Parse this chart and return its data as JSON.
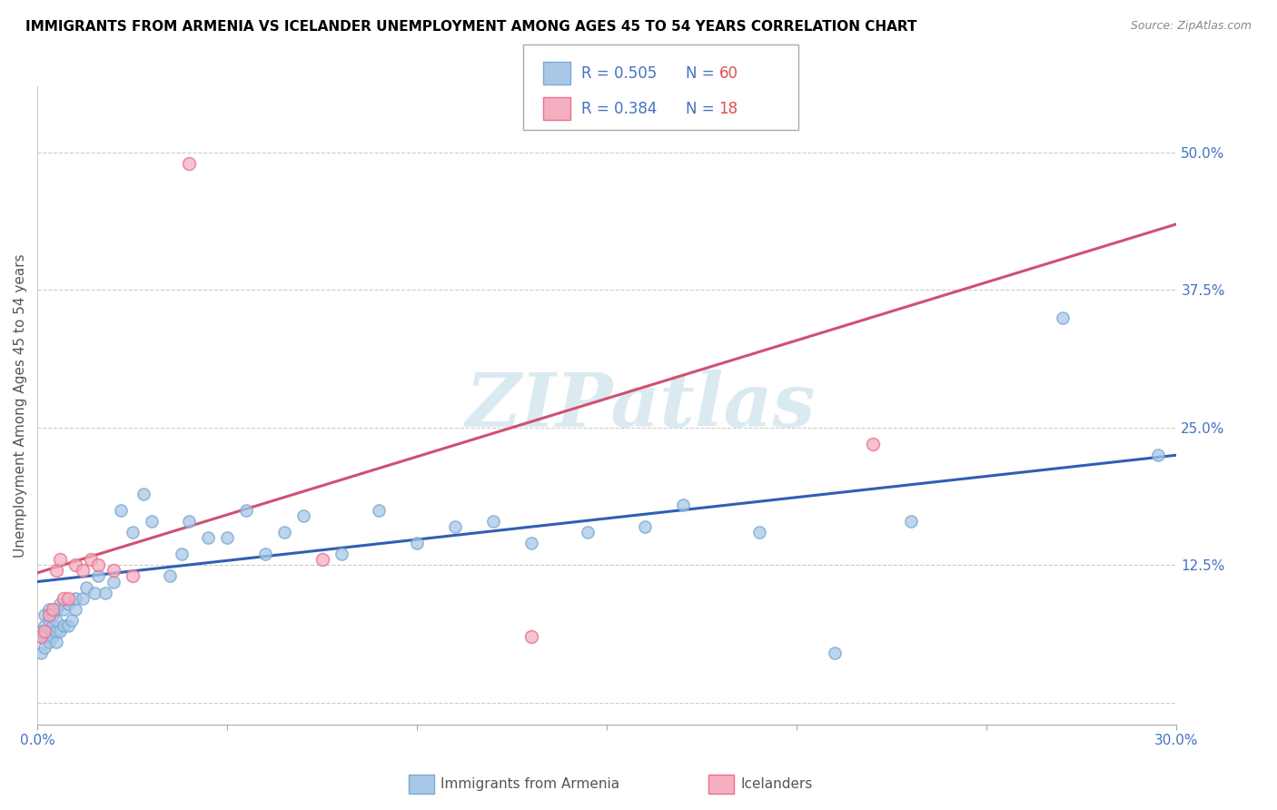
{
  "title": "IMMIGRANTS FROM ARMENIA VS ICELANDER UNEMPLOYMENT AMONG AGES 45 TO 54 YEARS CORRELATION CHART",
  "source": "Source: ZipAtlas.com",
  "ylabel": "Unemployment Among Ages 45 to 54 years",
  "xlim": [
    0.0,
    0.3
  ],
  "ylim": [
    -0.02,
    0.56
  ],
  "xticks": [
    0.0,
    0.05,
    0.1,
    0.15,
    0.2,
    0.25,
    0.3
  ],
  "xticklabels": [
    "0.0%",
    "",
    "",
    "",
    "",
    "",
    "30.0%"
  ],
  "yticks": [
    0.0,
    0.125,
    0.25,
    0.375,
    0.5
  ],
  "yticklabels": [
    "",
    "12.5%",
    "25.0%",
    "37.5%",
    "50.0%"
  ],
  "blue_color": "#a8c8e8",
  "pink_color": "#f4afc0",
  "blue_edge_color": "#7aaad0",
  "pink_edge_color": "#e87090",
  "blue_line_color": "#3060b0",
  "pink_line_color": "#d05070",
  "watermark": "ZIPatlas",
  "blue_scatter_x": [
    0.001,
    0.001,
    0.001,
    0.002,
    0.002,
    0.002,
    0.002,
    0.003,
    0.003,
    0.003,
    0.003,
    0.004,
    0.004,
    0.004,
    0.005,
    0.005,
    0.005,
    0.005,
    0.006,
    0.006,
    0.007,
    0.007,
    0.008,
    0.008,
    0.009,
    0.01,
    0.01,
    0.012,
    0.013,
    0.015,
    0.016,
    0.018,
    0.02,
    0.022,
    0.025,
    0.028,
    0.03,
    0.035,
    0.038,
    0.04,
    0.045,
    0.05,
    0.055,
    0.06,
    0.065,
    0.07,
    0.08,
    0.09,
    0.1,
    0.11,
    0.12,
    0.13,
    0.145,
    0.16,
    0.17,
    0.19,
    0.21,
    0.23,
    0.27,
    0.295
  ],
  "blue_scatter_y": [
    0.045,
    0.06,
    0.065,
    0.05,
    0.06,
    0.07,
    0.08,
    0.055,
    0.065,
    0.075,
    0.085,
    0.06,
    0.07,
    0.08,
    0.055,
    0.065,
    0.075,
    0.085,
    0.065,
    0.09,
    0.07,
    0.085,
    0.07,
    0.09,
    0.075,
    0.085,
    0.095,
    0.095,
    0.105,
    0.1,
    0.115,
    0.1,
    0.11,
    0.175,
    0.155,
    0.19,
    0.165,
    0.115,
    0.135,
    0.165,
    0.15,
    0.15,
    0.175,
    0.135,
    0.155,
    0.17,
    0.135,
    0.175,
    0.145,
    0.16,
    0.165,
    0.145,
    0.155,
    0.16,
    0.18,
    0.155,
    0.045,
    0.165,
    0.35,
    0.225
  ],
  "pink_scatter_x": [
    0.001,
    0.002,
    0.003,
    0.004,
    0.005,
    0.006,
    0.007,
    0.008,
    0.01,
    0.012,
    0.014,
    0.016,
    0.02,
    0.025,
    0.04,
    0.075,
    0.13,
    0.22
  ],
  "pink_scatter_y": [
    0.06,
    0.065,
    0.08,
    0.085,
    0.12,
    0.13,
    0.095,
    0.095,
    0.125,
    0.12,
    0.13,
    0.125,
    0.12,
    0.115,
    0.49,
    0.13,
    0.06,
    0.235
  ],
  "blue_trend_x": [
    0.0,
    0.3
  ],
  "blue_trend_y": [
    0.11,
    0.225
  ],
  "pink_trend_x": [
    0.0,
    0.3
  ],
  "pink_trend_y": [
    0.118,
    0.435
  ]
}
